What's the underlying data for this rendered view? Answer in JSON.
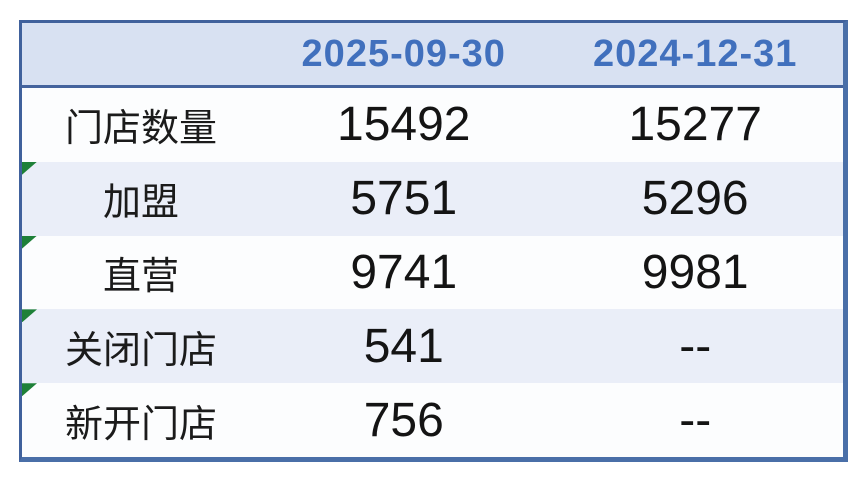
{
  "table": {
    "header": {
      "label_col": "",
      "col_date_1": "2025-09-30",
      "col_date_2": "2024-12-31"
    },
    "rows": [
      {
        "label": "门店数量",
        "val_2025": "15492",
        "val_2024": "15277",
        "marker": false
      },
      {
        "label": "加盟",
        "val_2025": "5751",
        "val_2024": "5296",
        "marker": true
      },
      {
        "label": "直营",
        "val_2025": "9741",
        "val_2024": "9981",
        "marker": true
      },
      {
        "label": "关闭门店",
        "val_2025": "541",
        "val_2024": "--",
        "marker": true
      },
      {
        "label": "新开门店",
        "val_2025": "756",
        "val_2024": "--",
        "marker": true
      }
    ],
    "colors": {
      "header_bg": "#d8e1f2",
      "header_text": "#4170bd",
      "border_thin": "#40619c",
      "border_thick": "#4a6fa8",
      "row_bg": "#fcfdfe",
      "row_alt_bg": "#eaeef8",
      "body_text": "#141414",
      "marker_green": "#1e8038"
    }
  },
  "chart_data": {
    "type": "table",
    "title": "",
    "columns": [
      "",
      "2025-09-30",
      "2024-12-31"
    ],
    "rows": [
      [
        "门店数量",
        15492,
        15277
      ],
      [
        "加盟",
        5751,
        5296
      ],
      [
        "直营",
        9741,
        9981
      ],
      [
        "关闭门店",
        541,
        "--"
      ],
      [
        "新开门店",
        756,
        "--"
      ]
    ]
  }
}
